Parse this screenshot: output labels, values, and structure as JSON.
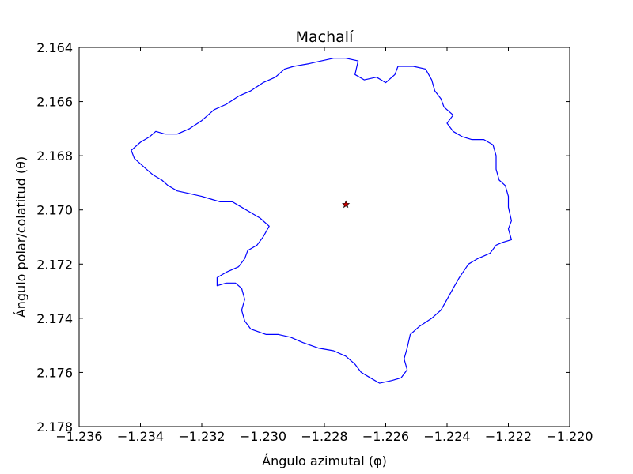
{
  "chart_data": {
    "type": "line",
    "title": "Machalí",
    "xlabel": "Ángulo azimutal (φ)",
    "ylabel": "Ángulo polar/colatitud (θ)",
    "xlim": [
      -1.236,
      -1.22
    ],
    "ylim": [
      2.164,
      2.178
    ],
    "y_inverted": true,
    "grid": false,
    "legend": "none",
    "xticks": [
      -1.236,
      -1.234,
      -1.232,
      -1.23,
      -1.228,
      -1.226,
      -1.224,
      -1.222,
      -1.22
    ],
    "xtick_labels": [
      "−1.236",
      "−1.234",
      "−1.232",
      "−1.230",
      "−1.228",
      "−1.226",
      "−1.224",
      "−1.222",
      "−1.220"
    ],
    "yticks": [
      2.164,
      2.166,
      2.168,
      2.17,
      2.172,
      2.174,
      2.176,
      2.178
    ],
    "ytick_labels": [
      "2.164",
      "2.166",
      "2.168",
      "2.170",
      "2.172",
      "2.174",
      "2.176",
      "2.178"
    ],
    "series": [
      {
        "kind": "boundary",
        "color": "#0000ff",
        "points": [
          [
            -1.2273,
            2.1644
          ],
          [
            -1.2269,
            2.1645
          ],
          [
            -1.227,
            2.165
          ],
          [
            -1.2267,
            2.1652
          ],
          [
            -1.2263,
            2.1651
          ],
          [
            -1.226,
            2.1653
          ],
          [
            -1.2257,
            2.165
          ],
          [
            -1.2256,
            2.1647
          ],
          [
            -1.2251,
            2.1647
          ],
          [
            -1.2247,
            2.1648
          ],
          [
            -1.2245,
            2.1652
          ],
          [
            -1.2244,
            2.1656
          ],
          [
            -1.2242,
            2.1659
          ],
          [
            -1.2241,
            2.1662
          ],
          [
            -1.2238,
            2.1665
          ],
          [
            -1.224,
            2.1668
          ],
          [
            -1.2238,
            2.1671
          ],
          [
            -1.2235,
            2.1673
          ],
          [
            -1.2232,
            2.1674
          ],
          [
            -1.2228,
            2.1674
          ],
          [
            -1.2225,
            2.1676
          ],
          [
            -1.2224,
            2.168
          ],
          [
            -1.2224,
            2.1685
          ],
          [
            -1.2223,
            2.1689
          ],
          [
            -1.2221,
            2.1691
          ],
          [
            -1.222,
            2.1695
          ],
          [
            -1.222,
            2.1699
          ],
          [
            -1.2219,
            2.1704
          ],
          [
            -1.222,
            2.1707
          ],
          [
            -1.2219,
            2.1711
          ],
          [
            -1.2222,
            2.1712
          ],
          [
            -1.2224,
            2.1713
          ],
          [
            -1.2226,
            2.1716
          ],
          [
            -1.223,
            2.1718
          ],
          [
            -1.2233,
            2.172
          ],
          [
            -1.2236,
            2.1725
          ],
          [
            -1.2238,
            2.1729
          ],
          [
            -1.224,
            2.1733
          ],
          [
            -1.2242,
            2.1737
          ],
          [
            -1.2245,
            2.174
          ],
          [
            -1.2249,
            2.1743
          ],
          [
            -1.2252,
            2.1746
          ],
          [
            -1.2253,
            2.1751
          ],
          [
            -1.2254,
            2.1755
          ],
          [
            -1.2253,
            2.1759
          ],
          [
            -1.2255,
            2.1762
          ],
          [
            -1.2258,
            2.1763
          ],
          [
            -1.2262,
            2.1764
          ],
          [
            -1.2265,
            2.1762
          ],
          [
            -1.2268,
            2.176
          ],
          [
            -1.227,
            2.1757
          ],
          [
            -1.2273,
            2.1754
          ],
          [
            -1.2277,
            2.1752
          ],
          [
            -1.2282,
            2.1751
          ],
          [
            -1.2287,
            2.1749
          ],
          [
            -1.2291,
            2.1747
          ],
          [
            -1.2295,
            2.1746
          ],
          [
            -1.2299,
            2.1746
          ],
          [
            -1.2304,
            2.1744
          ],
          [
            -1.2306,
            2.1741
          ],
          [
            -1.2307,
            2.1737
          ],
          [
            -1.2306,
            2.1733
          ],
          [
            -1.2307,
            2.1729
          ],
          [
            -1.2309,
            2.1727
          ],
          [
            -1.2312,
            2.1727
          ],
          [
            -1.2315,
            2.1728
          ],
          [
            -1.2315,
            2.1725
          ],
          [
            -1.2312,
            2.1723
          ],
          [
            -1.2308,
            2.1721
          ],
          [
            -1.2306,
            2.1718
          ],
          [
            -1.2305,
            2.1715
          ],
          [
            -1.2302,
            2.1713
          ],
          [
            -1.23,
            2.171
          ],
          [
            -1.2298,
            2.1706
          ],
          [
            -1.2301,
            2.1703
          ],
          [
            -1.2304,
            2.1701
          ],
          [
            -1.2307,
            2.1699
          ],
          [
            -1.231,
            2.1697
          ],
          [
            -1.2314,
            2.1697
          ],
          [
            -1.2317,
            2.1696
          ],
          [
            -1.232,
            2.1695
          ],
          [
            -1.2324,
            2.1694
          ],
          [
            -1.2328,
            2.1693
          ],
          [
            -1.2331,
            2.1691
          ],
          [
            -1.2333,
            2.1689
          ],
          [
            -1.2336,
            2.1687
          ],
          [
            -1.2338,
            2.1685
          ],
          [
            -1.234,
            2.1683
          ],
          [
            -1.2342,
            2.1681
          ],
          [
            -1.2343,
            2.1678
          ],
          [
            -1.234,
            2.1675
          ],
          [
            -1.2337,
            2.1673
          ],
          [
            -1.2335,
            2.1671
          ],
          [
            -1.2332,
            2.1672
          ],
          [
            -1.2328,
            2.1672
          ],
          [
            -1.2324,
            2.167
          ],
          [
            -1.232,
            2.1667
          ],
          [
            -1.2316,
            2.1663
          ],
          [
            -1.2312,
            2.1661
          ],
          [
            -1.2308,
            2.1658
          ],
          [
            -1.2304,
            2.1656
          ],
          [
            -1.23,
            2.1653
          ],
          [
            -1.2296,
            2.1651
          ],
          [
            -1.2293,
            2.1648
          ],
          [
            -1.229,
            2.1647
          ],
          [
            -1.2285,
            2.1646
          ],
          [
            -1.2281,
            2.1645
          ],
          [
            -1.2277,
            2.1644
          ],
          [
            -1.2273,
            2.1644
          ]
        ]
      },
      {
        "kind": "marker",
        "marker": "star",
        "color": "#cc0000",
        "points": [
          [
            -1.2273,
            2.1698
          ]
        ]
      }
    ]
  }
}
